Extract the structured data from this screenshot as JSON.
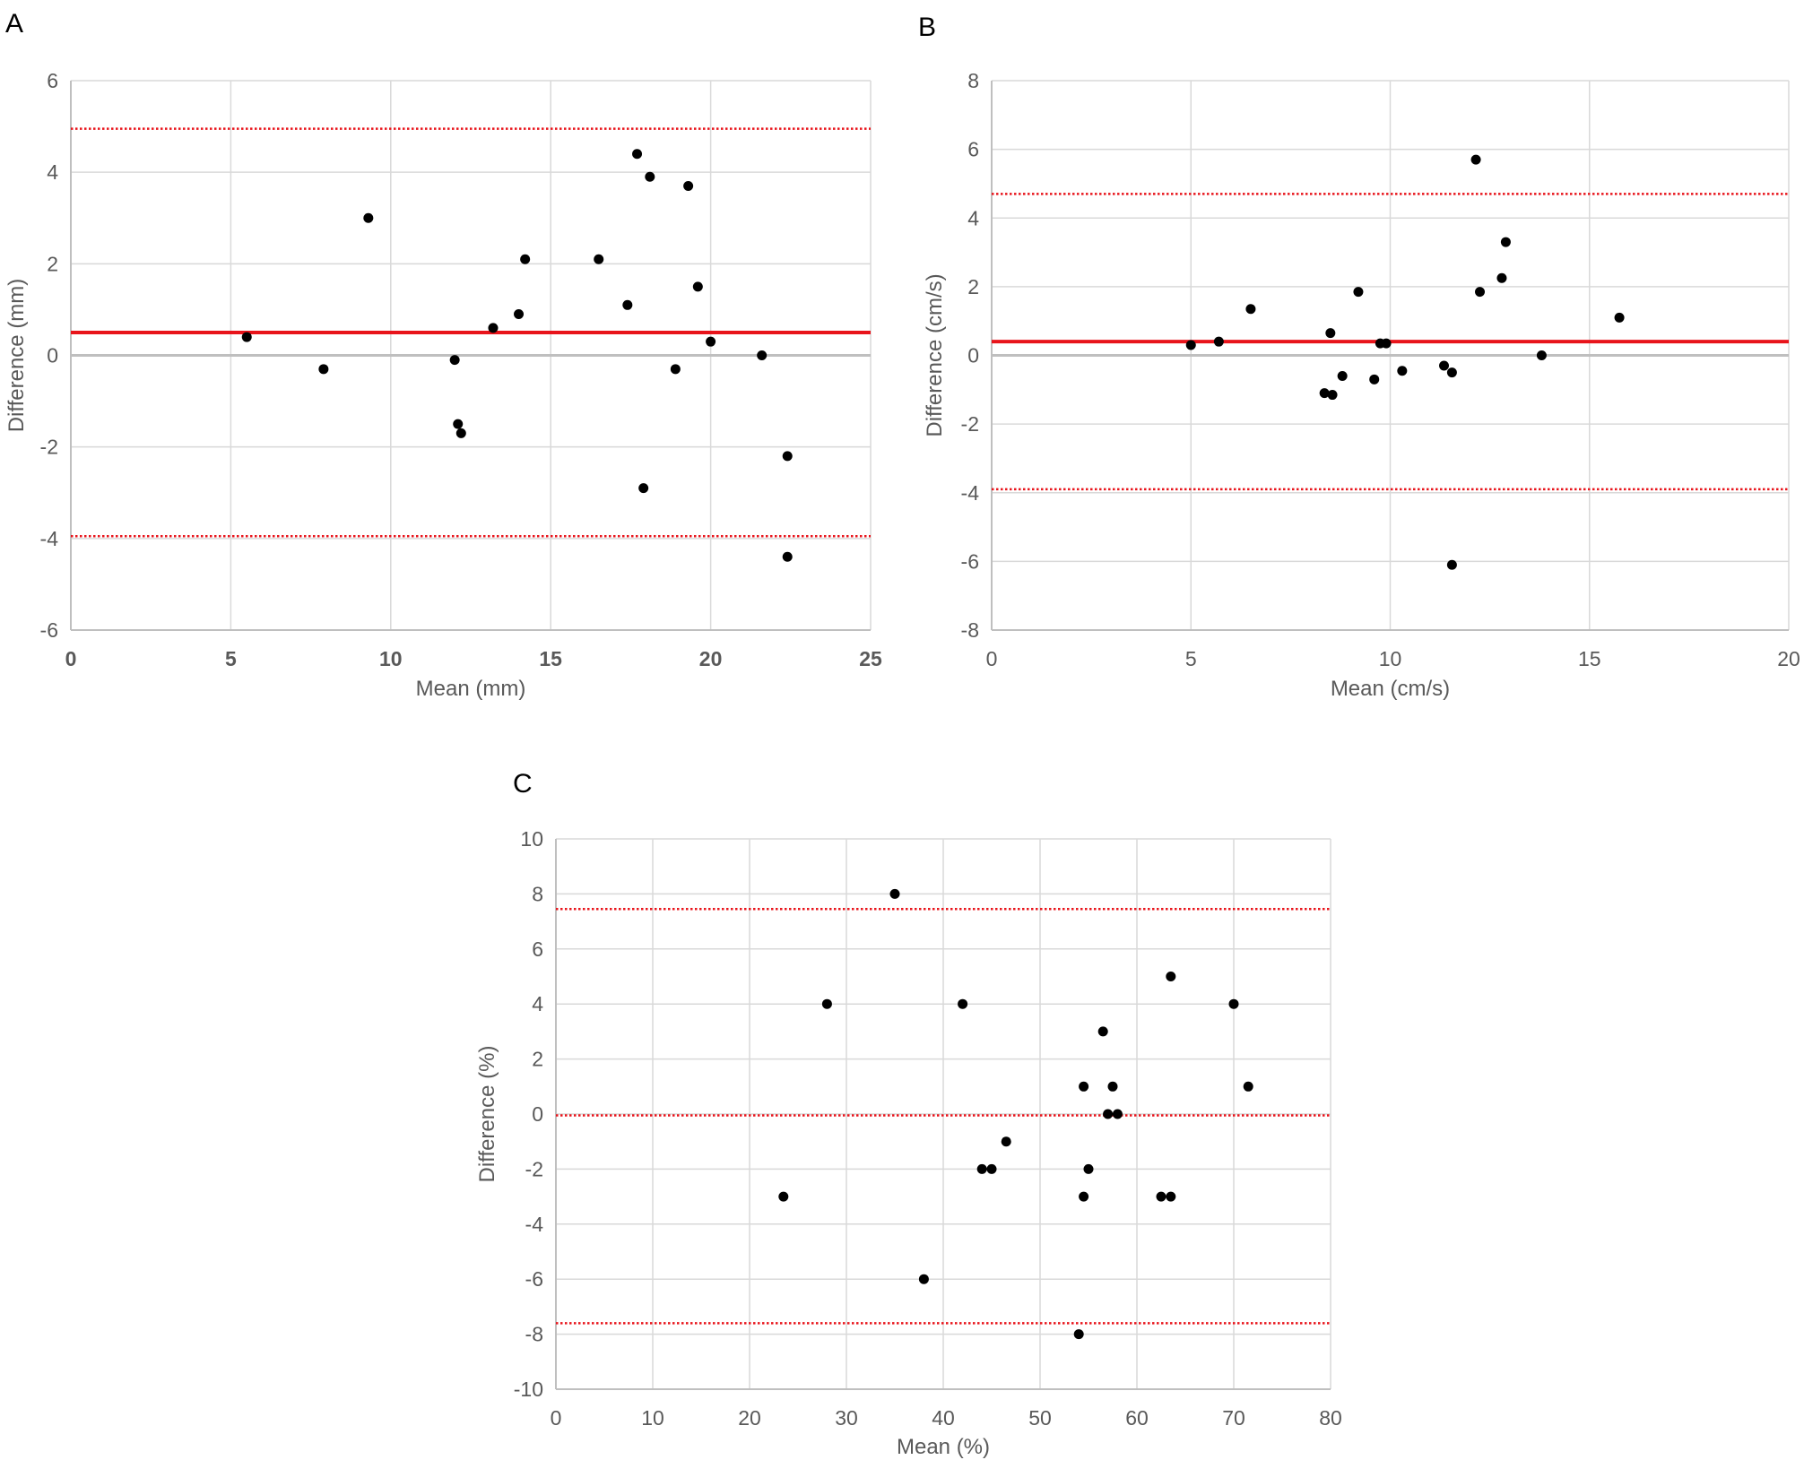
{
  "chart_data": [
    {
      "panel_label": "A",
      "type": "scatter",
      "xlabel": "Mean (mm)",
      "ylabel": "Difference (mm)",
      "xlim": [
        0,
        25
      ],
      "ylim": [
        -6,
        6
      ],
      "xticks": [
        0,
        5,
        10,
        15,
        20,
        25
      ],
      "yticks": [
        -6,
        -4,
        -2,
        0,
        2,
        4,
        6
      ],
      "xtick_labels": [
        "0",
        "5",
        "10",
        "15",
        "20",
        "25"
      ],
      "ytick_labels": [
        "-6",
        "-4",
        "-2",
        "0",
        "2",
        "4",
        "6"
      ],
      "xtick_bold": true,
      "grid": true,
      "zero_line": true,
      "mean_line": {
        "y": 0.5,
        "style": "solid",
        "color": "#e8141b"
      },
      "limit_lines": [
        {
          "y": 4.95,
          "style": "dotted",
          "color": "#e8141b"
        },
        {
          "y": -3.95,
          "style": "dotted",
          "color": "#e8141b"
        }
      ],
      "points": [
        {
          "x": 5.5,
          "y": 0.4
        },
        {
          "x": 7.9,
          "y": -0.3
        },
        {
          "x": 9.3,
          "y": 3.0
        },
        {
          "x": 12.0,
          "y": -0.1
        },
        {
          "x": 12.1,
          "y": -1.5
        },
        {
          "x": 12.2,
          "y": -1.7
        },
        {
          "x": 13.2,
          "y": 0.6
        },
        {
          "x": 14.0,
          "y": 0.9
        },
        {
          "x": 14.2,
          "y": 2.1
        },
        {
          "x": 16.5,
          "y": 2.1
        },
        {
          "x": 17.4,
          "y": 1.1
        },
        {
          "x": 17.7,
          "y": 4.4
        },
        {
          "x": 17.9,
          "y": -2.9
        },
        {
          "x": 18.1,
          "y": 3.9
        },
        {
          "x": 18.9,
          "y": -0.3
        },
        {
          "x": 19.3,
          "y": 3.7
        },
        {
          "x": 19.6,
          "y": 1.5
        },
        {
          "x": 20.0,
          "y": 0.3
        },
        {
          "x": 21.6,
          "y": 0.0
        },
        {
          "x": 22.4,
          "y": -2.2
        },
        {
          "x": 22.4,
          "y": -4.4
        }
      ]
    },
    {
      "panel_label": "B",
      "type": "scatter",
      "xlabel": "Mean (cm/s)",
      "ylabel": "Difference (cm/s)",
      "xlim": [
        0,
        20
      ],
      "ylim": [
        -8,
        8
      ],
      "xticks": [
        0,
        5,
        10,
        15,
        20
      ],
      "yticks": [
        -8,
        -6,
        -4,
        -2,
        0,
        2,
        4,
        6,
        8
      ],
      "xtick_labels": [
        "0",
        "5",
        "10",
        "15",
        "20"
      ],
      "ytick_labels": [
        "-8",
        "-6",
        "-4",
        "-2",
        "0",
        "2",
        "4",
        "6",
        "8"
      ],
      "xtick_bold": false,
      "grid": true,
      "zero_line": true,
      "mean_line": {
        "y": 0.4,
        "style": "solid",
        "color": "#e8141b"
      },
      "limit_lines": [
        {
          "y": 4.7,
          "style": "dotted",
          "color": "#e8141b"
        },
        {
          "y": -3.9,
          "style": "dotted",
          "color": "#e8141b"
        }
      ],
      "points": [
        {
          "x": 5.0,
          "y": 0.3
        },
        {
          "x": 5.7,
          "y": 0.4
        },
        {
          "x": 6.5,
          "y": 1.35
        },
        {
          "x": 8.35,
          "y": -1.1
        },
        {
          "x": 8.5,
          "y": 0.65
        },
        {
          "x": 8.55,
          "y": -1.15
        },
        {
          "x": 8.8,
          "y": -0.6
        },
        {
          "x": 9.2,
          "y": 1.85
        },
        {
          "x": 9.6,
          "y": -0.7
        },
        {
          "x": 9.75,
          "y": 0.35
        },
        {
          "x": 9.9,
          "y": 0.35
        },
        {
          "x": 10.3,
          "y": -0.45
        },
        {
          "x": 11.35,
          "y": -0.3
        },
        {
          "x": 11.55,
          "y": -0.5
        },
        {
          "x": 11.55,
          "y": -6.1
        },
        {
          "x": 12.15,
          "y": 5.7
        },
        {
          "x": 12.25,
          "y": 1.85
        },
        {
          "x": 12.8,
          "y": 2.25
        },
        {
          "x": 12.9,
          "y": 3.3
        },
        {
          "x": 13.8,
          "y": 0.0
        },
        {
          "x": 15.75,
          "y": 1.1
        }
      ]
    },
    {
      "panel_label": "C",
      "type": "scatter",
      "xlabel": "Mean (%)",
      "ylabel": "Difference (%)",
      "xlim": [
        0,
        80
      ],
      "ylim": [
        -10,
        10
      ],
      "xticks": [
        0,
        10,
        20,
        30,
        40,
        50,
        60,
        70,
        80
      ],
      "yticks": [
        -10,
        -8,
        -6,
        -4,
        -2,
        0,
        2,
        4,
        6,
        8,
        10
      ],
      "xtick_labels": [
        "0",
        "10",
        "20",
        "30",
        "40",
        "50",
        "60",
        "70",
        "80"
      ],
      "ytick_labels": [
        "-10",
        "-8",
        "-6",
        "-4",
        "-2",
        "0",
        "2",
        "4",
        "6",
        "8",
        "10"
      ],
      "xtick_bold": false,
      "grid": true,
      "zero_line": false,
      "mean_line": {
        "y": -0.05,
        "style": "dotted",
        "color": "#e8141b"
      },
      "limit_lines": [
        {
          "y": 7.45,
          "style": "dotted",
          "color": "#e8141b"
        },
        {
          "y": -7.6,
          "style": "dotted",
          "color": "#e8141b"
        }
      ],
      "points": [
        {
          "x": 23.5,
          "y": -3
        },
        {
          "x": 28,
          "y": 4
        },
        {
          "x": 35,
          "y": 8
        },
        {
          "x": 38,
          "y": -6
        },
        {
          "x": 42,
          "y": 4
        },
        {
          "x": 44,
          "y": -2
        },
        {
          "x": 45,
          "y": -2
        },
        {
          "x": 46.5,
          "y": -1
        },
        {
          "x": 54,
          "y": -8
        },
        {
          "x": 54.5,
          "y": 1
        },
        {
          "x": 54.5,
          "y": -3
        },
        {
          "x": 55,
          "y": -2
        },
        {
          "x": 56.5,
          "y": 3
        },
        {
          "x": 57,
          "y": 0
        },
        {
          "x": 57.5,
          "y": 1
        },
        {
          "x": 58,
          "y": 0
        },
        {
          "x": 62.5,
          "y": -3
        },
        {
          "x": 63.5,
          "y": 5
        },
        {
          "x": 63.5,
          "y": -3
        },
        {
          "x": 70,
          "y": 4
        },
        {
          "x": 71.5,
          "y": 1
        }
      ]
    }
  ],
  "colors": {
    "grid": "#d9d9d9",
    "axis": "#bfbfbf",
    "zero_line": "#bfbfbf",
    "tick_text": "#595959",
    "label_text": "#595959",
    "panel_label": "#000000",
    "point": "#000000"
  }
}
